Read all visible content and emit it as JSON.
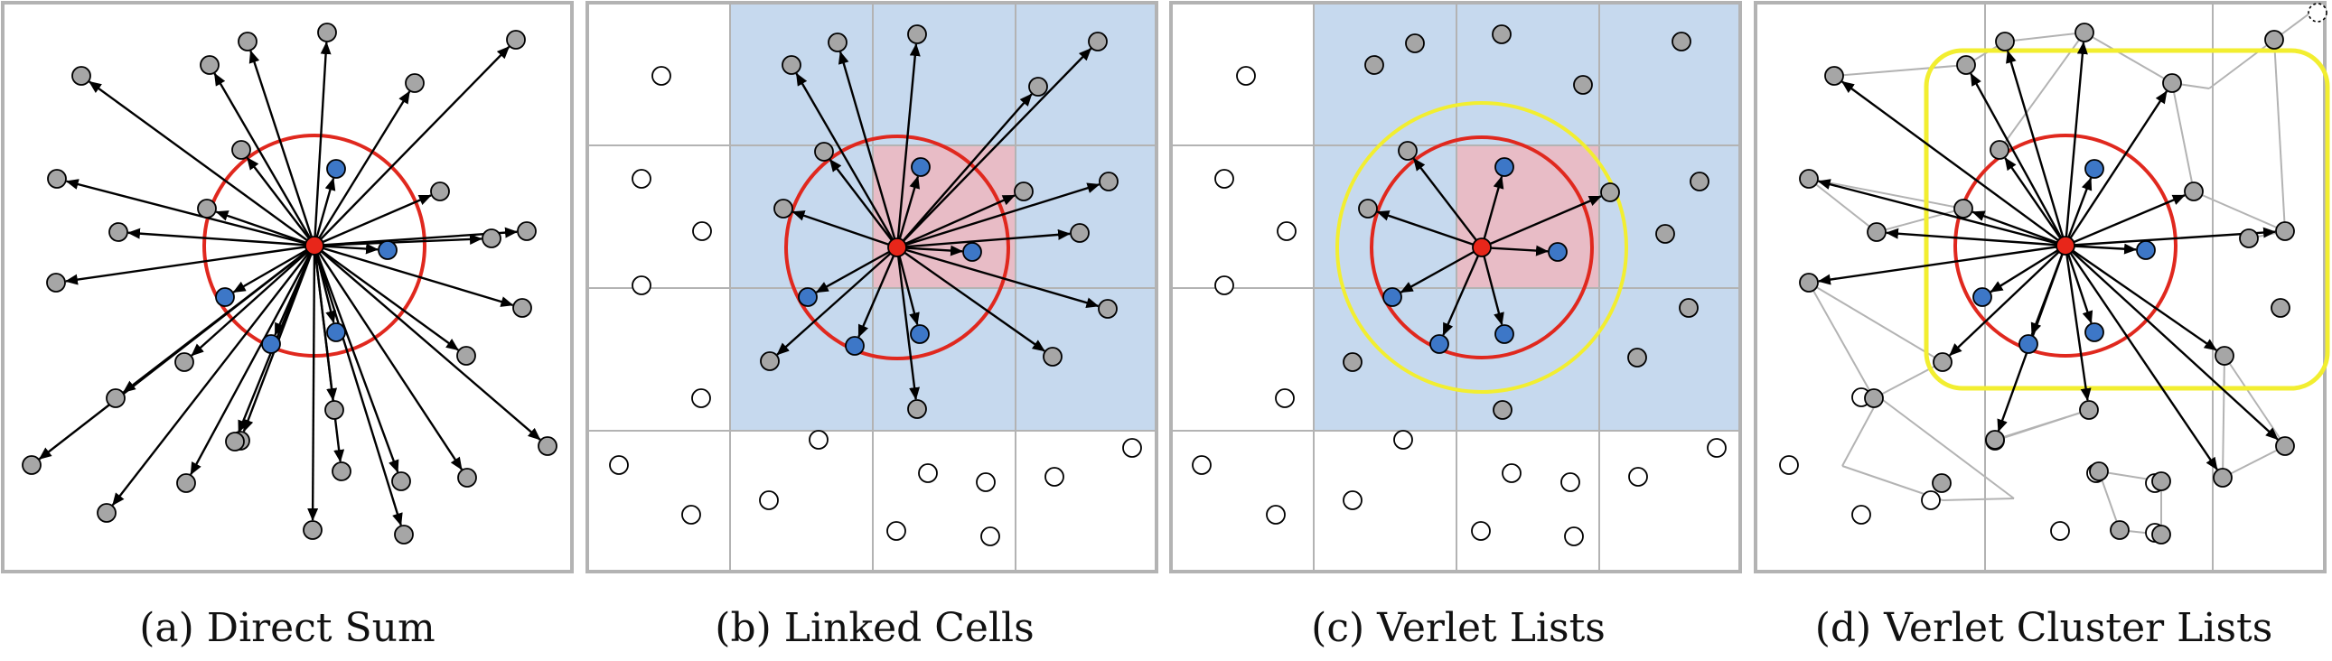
{
  "captions": [
    "(a) Direct Sum",
    "(b) Linked Cells",
    "(c) Verlet Lists",
    "(d) Verlet Cluster Lists"
  ],
  "colors": {
    "frame": "#b3b3b3",
    "cell_region": "#c6d9ee",
    "center_cell": "#e8bcc6",
    "cutoff_circle": "#e0281e",
    "skin_circle": "#f2ee30",
    "center_particle": "#e8261a",
    "inside_particle": "#3d77c7",
    "outside_particle": "#a6a6a6",
    "far_particle": "#ffffff",
    "arrow": "#000000",
    "cluster_link": "#b3b3b3"
  },
  "icons": [
    "particle-dot",
    "interaction-arrow",
    "cutoff-circle",
    "grid-cell",
    "dashed-ghost-particle"
  ]
}
